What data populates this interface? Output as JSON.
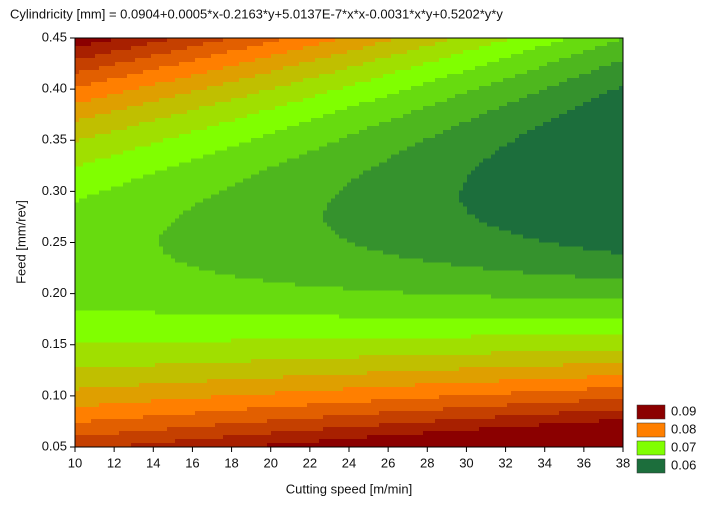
{
  "chart_data": {
    "type": "contour",
    "title": "Cylindricity [mm] = 0.0904+0.0005*x-0.2163*y+5.0137E-7*x*x-0.0031*x*y+0.5202*y*y",
    "xlabel": "Cutting speed [m/min]",
    "ylabel": "Feed [mm/rev]",
    "xlim": [
      10,
      38
    ],
    "xticks": [
      10,
      12,
      14,
      16,
      18,
      20,
      22,
      24,
      26,
      28,
      30,
      32,
      34,
      36,
      38
    ],
    "ylim": [
      0.05,
      0.45
    ],
    "yticks": [
      0.05,
      {
        "value": 0.1,
        "label": "0.10"
      },
      0.15,
      {
        "value": 0.2,
        "label": "0.20"
      },
      0.25,
      {
        "value": 0.3,
        "label": "0.30"
      },
      0.35,
      {
        "value": 0.4,
        "label": "0.40"
      },
      0.45
    ],
    "legend": {
      "levels": [
        0.09,
        0.08,
        0.07,
        0.06
      ],
      "colors": [
        "#8b0000",
        "#ff7f00",
        "#80ff00",
        "#1c6e3c"
      ]
    }
  }
}
